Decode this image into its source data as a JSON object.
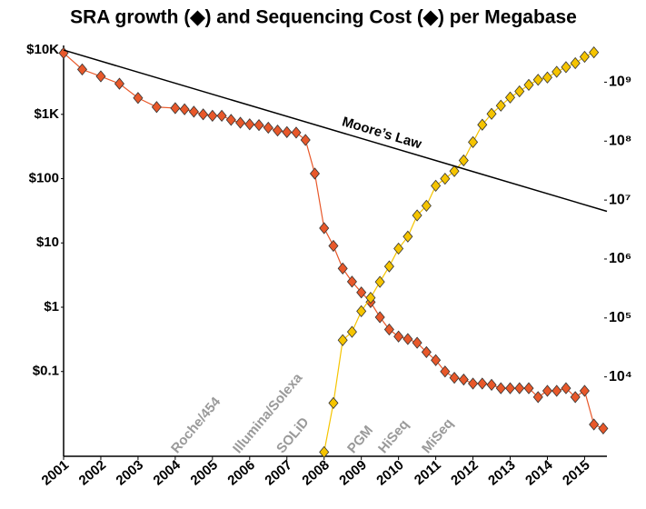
{
  "chart_data": {
    "type": "line",
    "title": "SRA growth (◆) and Sequencing Cost (◆) per Megabase",
    "xlim": [
      2001,
      2015.6
    ],
    "xticks": [
      2001,
      2002,
      2003,
      2004,
      2005,
      2006,
      2007,
      2008,
      2009,
      2010,
      2011,
      2012,
      2013,
      2014,
      2015
    ],
    "ylim": [
      0.0048,
      11800
    ],
    "log_y": true,
    "yticks": [
      {
        "value": 10000,
        "label": "$10K"
      },
      {
        "value": 1000,
        "label": "$1K"
      },
      {
        "value": 100,
        "label": "$100"
      },
      {
        "value": 10,
        "label": "$10"
      },
      {
        "value": 1,
        "label": "$1"
      },
      {
        "value": 0.1,
        "label": "$0.1"
      }
    ],
    "y2lim": [
      450,
      4200000000
    ],
    "y2ticks": [
      {
        "value": 10000,
        "label": "10⁴"
      },
      {
        "value": 100000,
        "label": "10⁵"
      },
      {
        "value": 1000000,
        "label": "10⁶"
      },
      {
        "value": 10000000,
        "label": "10⁷"
      },
      {
        "value": 100000000,
        "label": "10⁸"
      },
      {
        "value": 1000000000,
        "label": "10⁹"
      }
    ],
    "grid": false,
    "annotations": [
      "Roche/454",
      "Illumina/Solexa",
      "SOLiD",
      "PGM",
      "HiSeq",
      "MiSeq"
    ],
    "series": [
      {
        "name": "Sequencing Cost",
        "color": "#e8582a",
        "marker": "diamond",
        "axis": "y",
        "x": [
          2001.0,
          2001.5,
          2002.0,
          2002.5,
          2003.0,
          2003.5,
          2004.0,
          2004.25,
          2004.5,
          2004.75,
          2005.0,
          2005.25,
          2005.5,
          2005.75,
          2006.0,
          2006.25,
          2006.5,
          2006.75,
          2007.0,
          2007.25,
          2007.5,
          2007.75,
          2008.0,
          2008.25,
          2008.5,
          2008.75,
          2009.0,
          2009.25,
          2009.5,
          2009.75,
          2010.0,
          2010.25,
          2010.5,
          2010.75,
          2011.0,
          2011.25,
          2011.5,
          2011.75,
          2012.0,
          2012.25,
          2012.5,
          2012.75,
          2013.0,
          2013.25,
          2013.5,
          2013.75,
          2014.0,
          2014.25,
          2014.5,
          2014.75,
          2015.0,
          2015.25,
          2015.5
        ],
        "values": [
          9000,
          5000,
          3900,
          3000,
          1800,
          1300,
          1250,
          1200,
          1100,
          1000,
          950,
          950,
          820,
          740,
          700,
          680,
          620,
          560,
          530,
          520,
          400,
          120,
          17,
          9,
          4,
          2.5,
          1.7,
          1.2,
          0.7,
          0.45,
          0.35,
          0.32,
          0.28,
          0.2,
          0.15,
          0.1,
          0.08,
          0.075,
          0.065,
          0.065,
          0.062,
          0.055,
          0.055,
          0.055,
          0.055,
          0.04,
          0.05,
          0.05,
          0.055,
          0.04,
          0.05,
          0.015,
          0.013
        ]
      },
      {
        "name": "SRA growth",
        "color": "#f5c400",
        "marker": "diamond",
        "axis": "y2",
        "x": [
          2008.0,
          2008.25,
          2008.5,
          2008.75,
          2009.0,
          2009.25,
          2009.5,
          2009.75,
          2010.0,
          2010.25,
          2010.5,
          2010.75,
          2011.0,
          2011.25,
          2011.5,
          2011.75,
          2012.0,
          2012.25,
          2012.5,
          2012.75,
          2013.0,
          2013.25,
          2013.5,
          2013.75,
          2014.0,
          2014.25,
          2014.5,
          2014.75,
          2015.0,
          2015.25
        ],
        "values": [
          530,
          3600,
          42000,
          58000,
          130000,
          220000,
          410000,
          750000,
          1500000,
          2400000,
          5500000,
          8000000,
          17500000,
          23000000,
          31000000,
          47000000,
          96000000,
          190000000,
          290000000,
          400000000,
          550000000,
          700000000,
          900000000,
          1100000000,
          1200000000,
          1500000000,
          1800000000,
          2100000000,
          2700000000,
          3200000000
        ]
      },
      {
        "name": "Moore’s Law",
        "color": "#000000",
        "marker": "none",
        "axis": "y",
        "x": [
          2001,
          2015.6
        ],
        "values": [
          10000,
          31
        ]
      }
    ]
  }
}
